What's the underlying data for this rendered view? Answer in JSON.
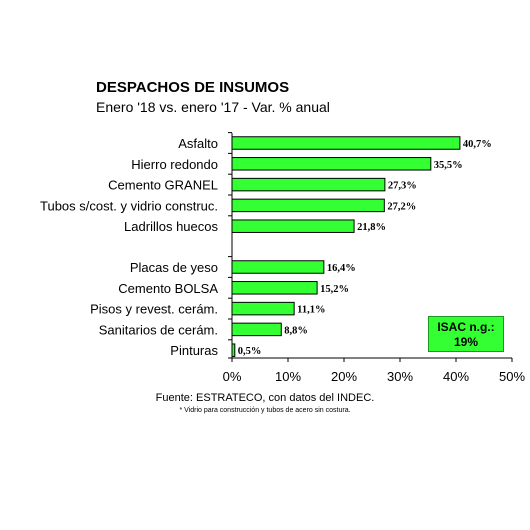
{
  "chart_data": {
    "type": "bar",
    "orientation": "horizontal",
    "title": "DESPACHOS DE INSUMOS",
    "subtitle": "Enero '18 vs. enero '17 - Var. % anual",
    "categories": [
      "Asfalto",
      "Hierro redondo",
      "Cemento GRANEL",
      "Tubos s/cost. y vidrio construc.",
      "Ladrillos huecos",
      "Placas de yeso",
      "Cemento BOLSA",
      "Pisos y revest. cerám.",
      "Sanitarios de cerám.",
      "Pinturas"
    ],
    "groups": [
      [
        0,
        1,
        2,
        3,
        4
      ],
      [
        5,
        6,
        7,
        8,
        9
      ]
    ],
    "values": [
      40.7,
      35.5,
      27.3,
      27.2,
      21.8,
      16.4,
      15.2,
      11.1,
      8.8,
      0.5
    ],
    "data_labels": [
      "40,7%",
      "35,5%",
      "27,3%",
      "27,2%",
      "21,8%",
      "16,4%",
      "15,2%",
      "11,1%",
      "8,8%",
      "0,5%"
    ],
    "xlim": [
      0,
      50
    ],
    "xticks": [
      0,
      10,
      20,
      30,
      40,
      50
    ],
    "xtick_labels": [
      "0%",
      "10%",
      "20%",
      "30%",
      "40%",
      "50%"
    ],
    "grid": false,
    "bar_color": "#33ff33",
    "bar_edge_color": "#000000"
  },
  "annotation": {
    "line1": "ISAC n.g.:",
    "line2": "19%"
  },
  "source": "Fuente: ESTRATECO, con datos del INDEC.",
  "note": "* Vidrio para construcción y tubos de acero sin costura."
}
